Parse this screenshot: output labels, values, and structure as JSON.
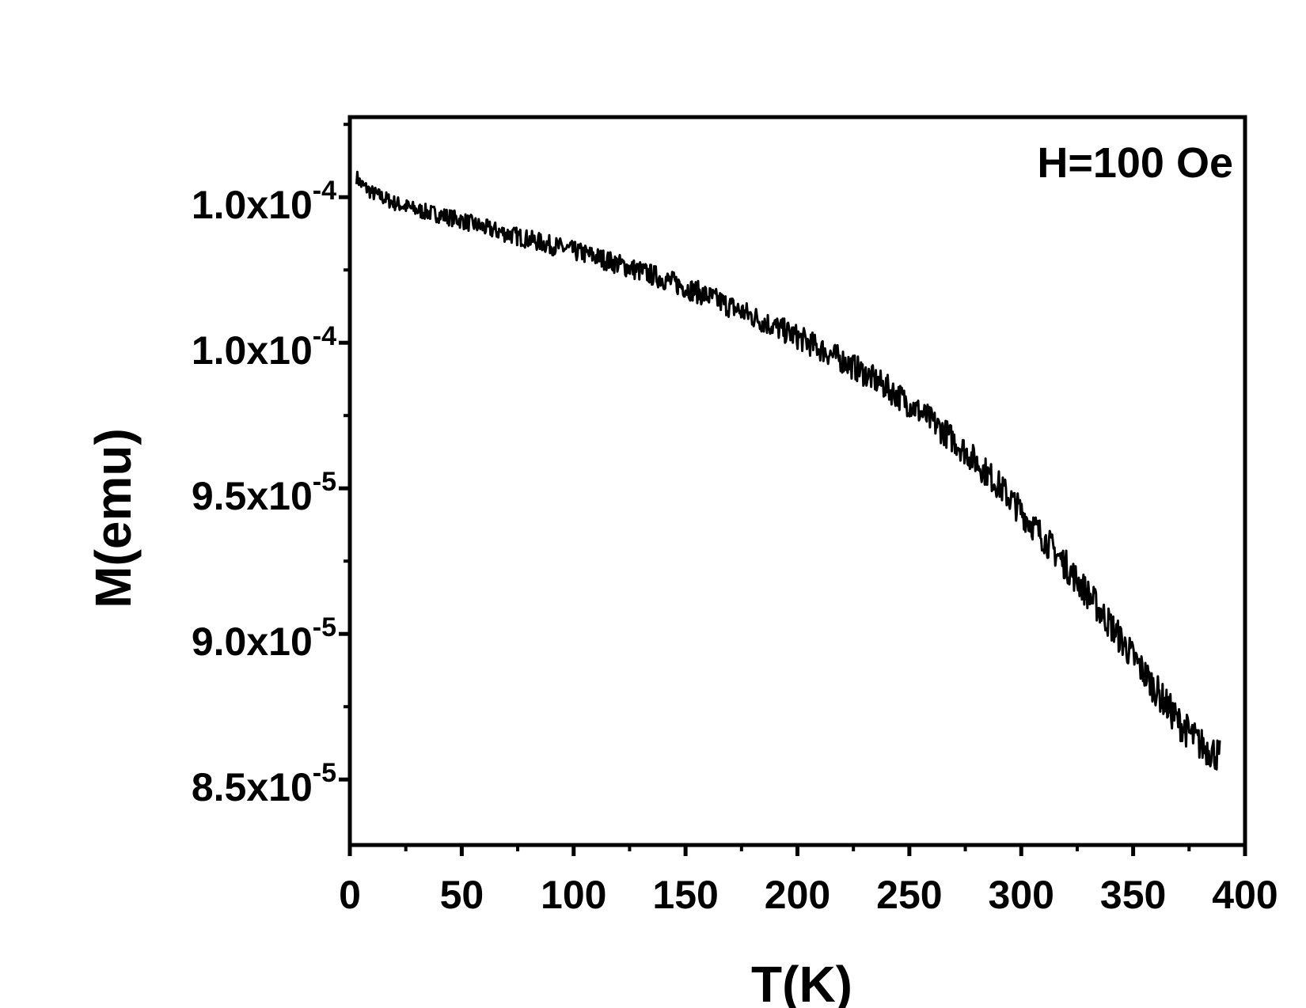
{
  "chart_data": {
    "type": "line",
    "xlabel": "T(K)",
    "ylabel": "M(emu)",
    "annotation": "H=100 Oe",
    "xlim": [
      0,
      400
    ],
    "ylim": [
      8.275e-05,
      0.00010775
    ],
    "x_ticks": [
      {
        "value": 0,
        "label": "0"
      },
      {
        "value": 50,
        "label": "50"
      },
      {
        "value": 100,
        "label": "100"
      },
      {
        "value": 150,
        "label": "150"
      },
      {
        "value": 200,
        "label": "200"
      },
      {
        "value": 250,
        "label": "250"
      },
      {
        "value": 300,
        "label": "300"
      },
      {
        "value": 350,
        "label": "350"
      },
      {
        "value": 400,
        "label": "400"
      }
    ],
    "y_ticks": [
      {
        "value": 8.5e-05,
        "mantissa": "8.5x10",
        "exponent": "-5"
      },
      {
        "value": 9e-05,
        "mantissa": "9.0x10",
        "exponent": "-5"
      },
      {
        "value": 9.5e-05,
        "mantissa": "9.5x10",
        "exponent": "-5"
      },
      {
        "value": 0.0001,
        "mantissa": "1.0x10",
        "exponent": "-4"
      },
      {
        "value": 0.000105,
        "mantissa": "1.0x10",
        "exponent": "-4"
      }
    ],
    "grid": false,
    "series": [
      {
        "color": "#000000",
        "x": [
          3,
          5,
          10,
          20,
          30,
          40,
          50,
          60,
          70,
          80,
          90,
          100,
          110,
          120,
          130,
          140,
          150,
          160,
          170,
          180,
          190,
          200,
          210,
          220,
          230,
          240,
          250,
          260,
          270,
          280,
          290,
          300,
          310,
          320,
          330,
          340,
          350,
          360,
          370,
          380,
          389
        ],
        "y": [
          0.0001057,
          0.00010545,
          0.00010515,
          0.0001048,
          0.00010455,
          0.0001044,
          0.0001042,
          0.00010395,
          0.00010375,
          0.00010355,
          0.00010335,
          0.00010315,
          0.00010295,
          0.0001027,
          0.00010245,
          0.0001022,
          0.0001019,
          0.0001016,
          0.00010125,
          0.0001009,
          0.00010055,
          0.0001002,
          9.98e-05,
          9.94e-05,
          9.895e-05,
          9.845e-05,
          9.79e-05,
          9.73e-05,
          9.665e-05,
          9.59e-05,
          9.51e-05,
          9.42e-05,
          9.33e-05,
          9.235e-05,
          9.135e-05,
          9.03e-05,
          8.92e-05,
          8.81e-05,
          8.7e-05,
          8.62e-05,
          8.58e-05
        ]
      }
    ]
  }
}
